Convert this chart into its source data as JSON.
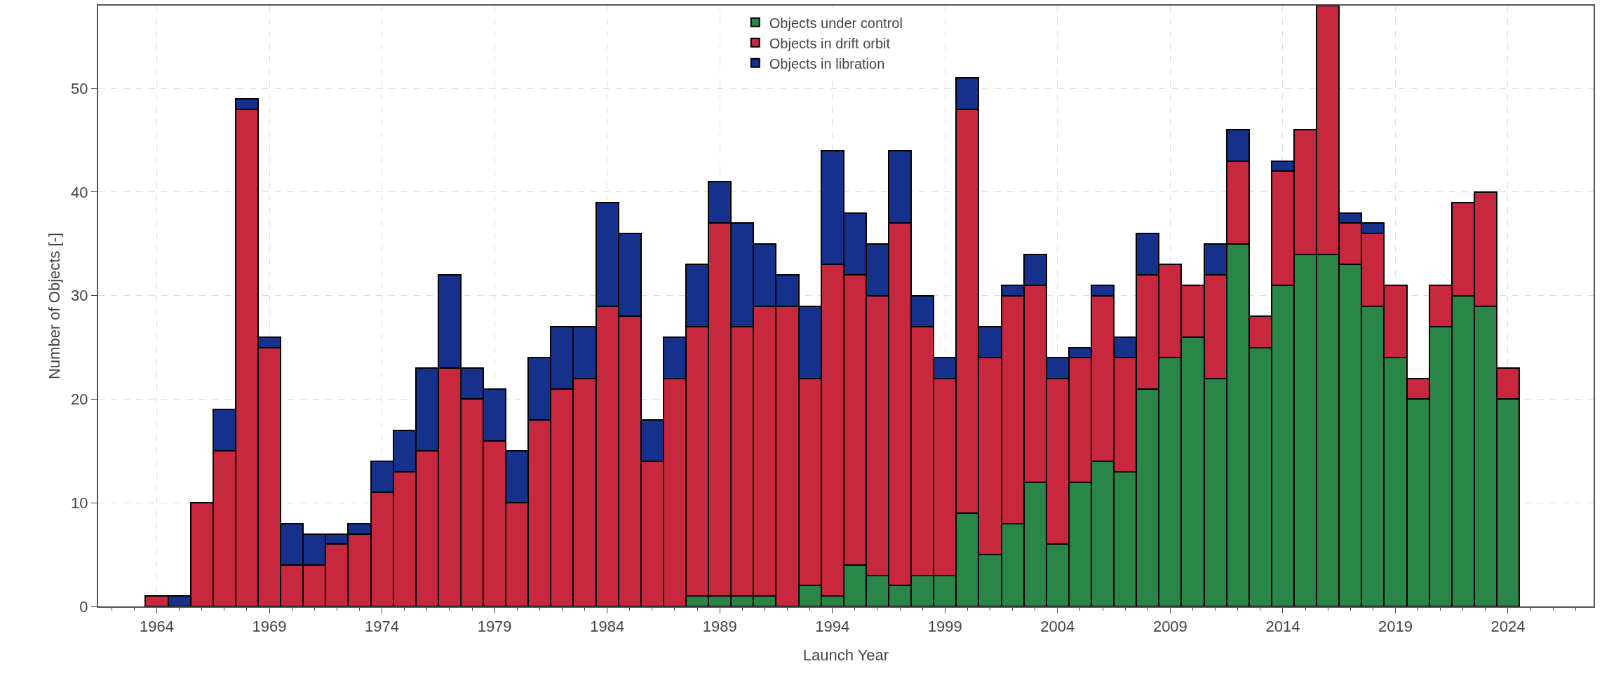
{
  "chart_data": {
    "type": "bar",
    "stacked": true,
    "xlabel": "Launch Year",
    "ylabel": "Number of Objects [-]",
    "x": [
      1964,
      1965,
      1966,
      1967,
      1968,
      1969,
      1970,
      1971,
      1972,
      1973,
      1974,
      1975,
      1976,
      1977,
      1978,
      1979,
      1980,
      1981,
      1982,
      1983,
      1984,
      1985,
      1986,
      1987,
      1988,
      1989,
      1990,
      1991,
      1992,
      1993,
      1994,
      1995,
      1996,
      1997,
      1998,
      1999,
      2000,
      2001,
      2002,
      2003,
      2004,
      2005,
      2006,
      2007,
      2008,
      2009,
      2010,
      2011,
      2012,
      2013,
      2014,
      2015,
      2016,
      2017,
      2018,
      2019,
      2020,
      2021,
      2022,
      2023,
      2024
    ],
    "series": [
      {
        "name": "Objects under control",
        "color": "#2a8548",
        "values": [
          null,
          null,
          null,
          null,
          null,
          null,
          null,
          null,
          null,
          null,
          null,
          null,
          null,
          null,
          null,
          null,
          null,
          null,
          null,
          null,
          null,
          null,
          null,
          null,
          1,
          1,
          1,
          1,
          null,
          2,
          1,
          4,
          3,
          2,
          3,
          3,
          9,
          5,
          8,
          12,
          6,
          12,
          14,
          13,
          21,
          24,
          26,
          22,
          35,
          25,
          31,
          34,
          34,
          33,
          29,
          24,
          20,
          27,
          30,
          29,
          20
        ]
      },
      {
        "name": "Objects in drift orbit",
        "color": "#c8283e",
        "values": [
          1,
          null,
          10,
          15,
          48,
          25,
          4,
          4,
          6,
          7,
          11,
          13,
          15,
          23,
          20,
          16,
          10,
          18,
          21,
          22,
          29,
          28,
          14,
          22,
          26,
          36,
          26,
          28,
          29,
          20,
          32,
          28,
          27,
          35,
          24,
          19,
          39,
          19,
          22,
          19,
          16,
          12,
          16,
          11,
          11,
          9,
          5,
          10,
          8,
          3,
          11,
          12,
          24,
          4,
          7,
          7,
          2,
          4,
          9,
          11,
          3
        ]
      },
      {
        "name": "Objects in libration",
        "color": "#16318c",
        "values": [
          null,
          1,
          null,
          4,
          1,
          1,
          4,
          3,
          1,
          1,
          3,
          4,
          8,
          9,
          3,
          5,
          5,
          6,
          6,
          5,
          10,
          8,
          4,
          4,
          6,
          4,
          10,
          6,
          3,
          7,
          11,
          6,
          5,
          7,
          3,
          2,
          3,
          3,
          1,
          3,
          2,
          1,
          1,
          2,
          4,
          null,
          null,
          3,
          3,
          null,
          1,
          null,
          null,
          1,
          1,
          null,
          null,
          null,
          null,
          null,
          null
        ]
      }
    ],
    "xlim": [
      1961.4,
      2027.8
    ],
    "xticks": [
      1964,
      1969,
      1974,
      1979,
      1984,
      1989,
      1994,
      1999,
      2004,
      2009,
      2014,
      2019,
      2024
    ],
    "ylim": [
      0,
      58
    ],
    "yticks": [
      0,
      10,
      20,
      30,
      40,
      50
    ],
    "grid": true,
    "legend": "top"
  }
}
